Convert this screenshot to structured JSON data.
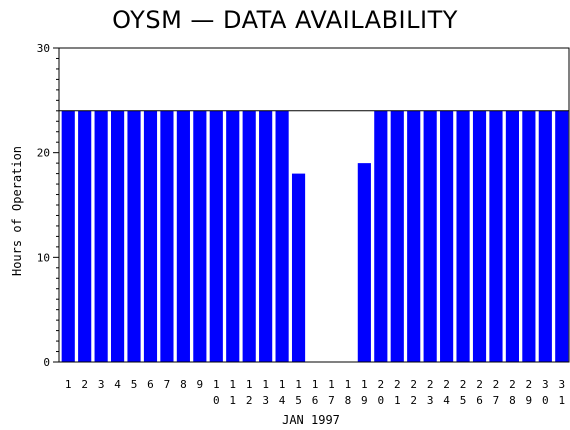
{
  "chart_data": {
    "type": "bar",
    "title": "OYSM — DATA AVAILABILITY",
    "xlabel": "JAN 1997",
    "ylabel": "Hours of Operation",
    "ylim": [
      0,
      30
    ],
    "yticks": [
      "0",
      "10",
      "20",
      "30"
    ],
    "categories": [
      "1",
      "2",
      "3",
      "4",
      "5",
      "6",
      "7",
      "8",
      "9",
      "10",
      "11",
      "12",
      "13",
      "14",
      "15",
      "16",
      "17",
      "18",
      "19",
      "20",
      "21",
      "22",
      "23",
      "24",
      "25",
      "26",
      "27",
      "28",
      "29",
      "30",
      "31"
    ],
    "values": [
      24,
      24,
      24,
      24,
      24,
      24,
      24,
      24,
      24,
      24,
      24,
      24,
      24,
      24,
      18,
      0,
      0,
      0,
      19,
      24,
      24,
      24,
      24,
      24,
      24,
      24,
      24,
      24,
      24,
      24,
      24
    ],
    "reference_line": 24,
    "bar_color": "#0000ff",
    "grid": false
  }
}
